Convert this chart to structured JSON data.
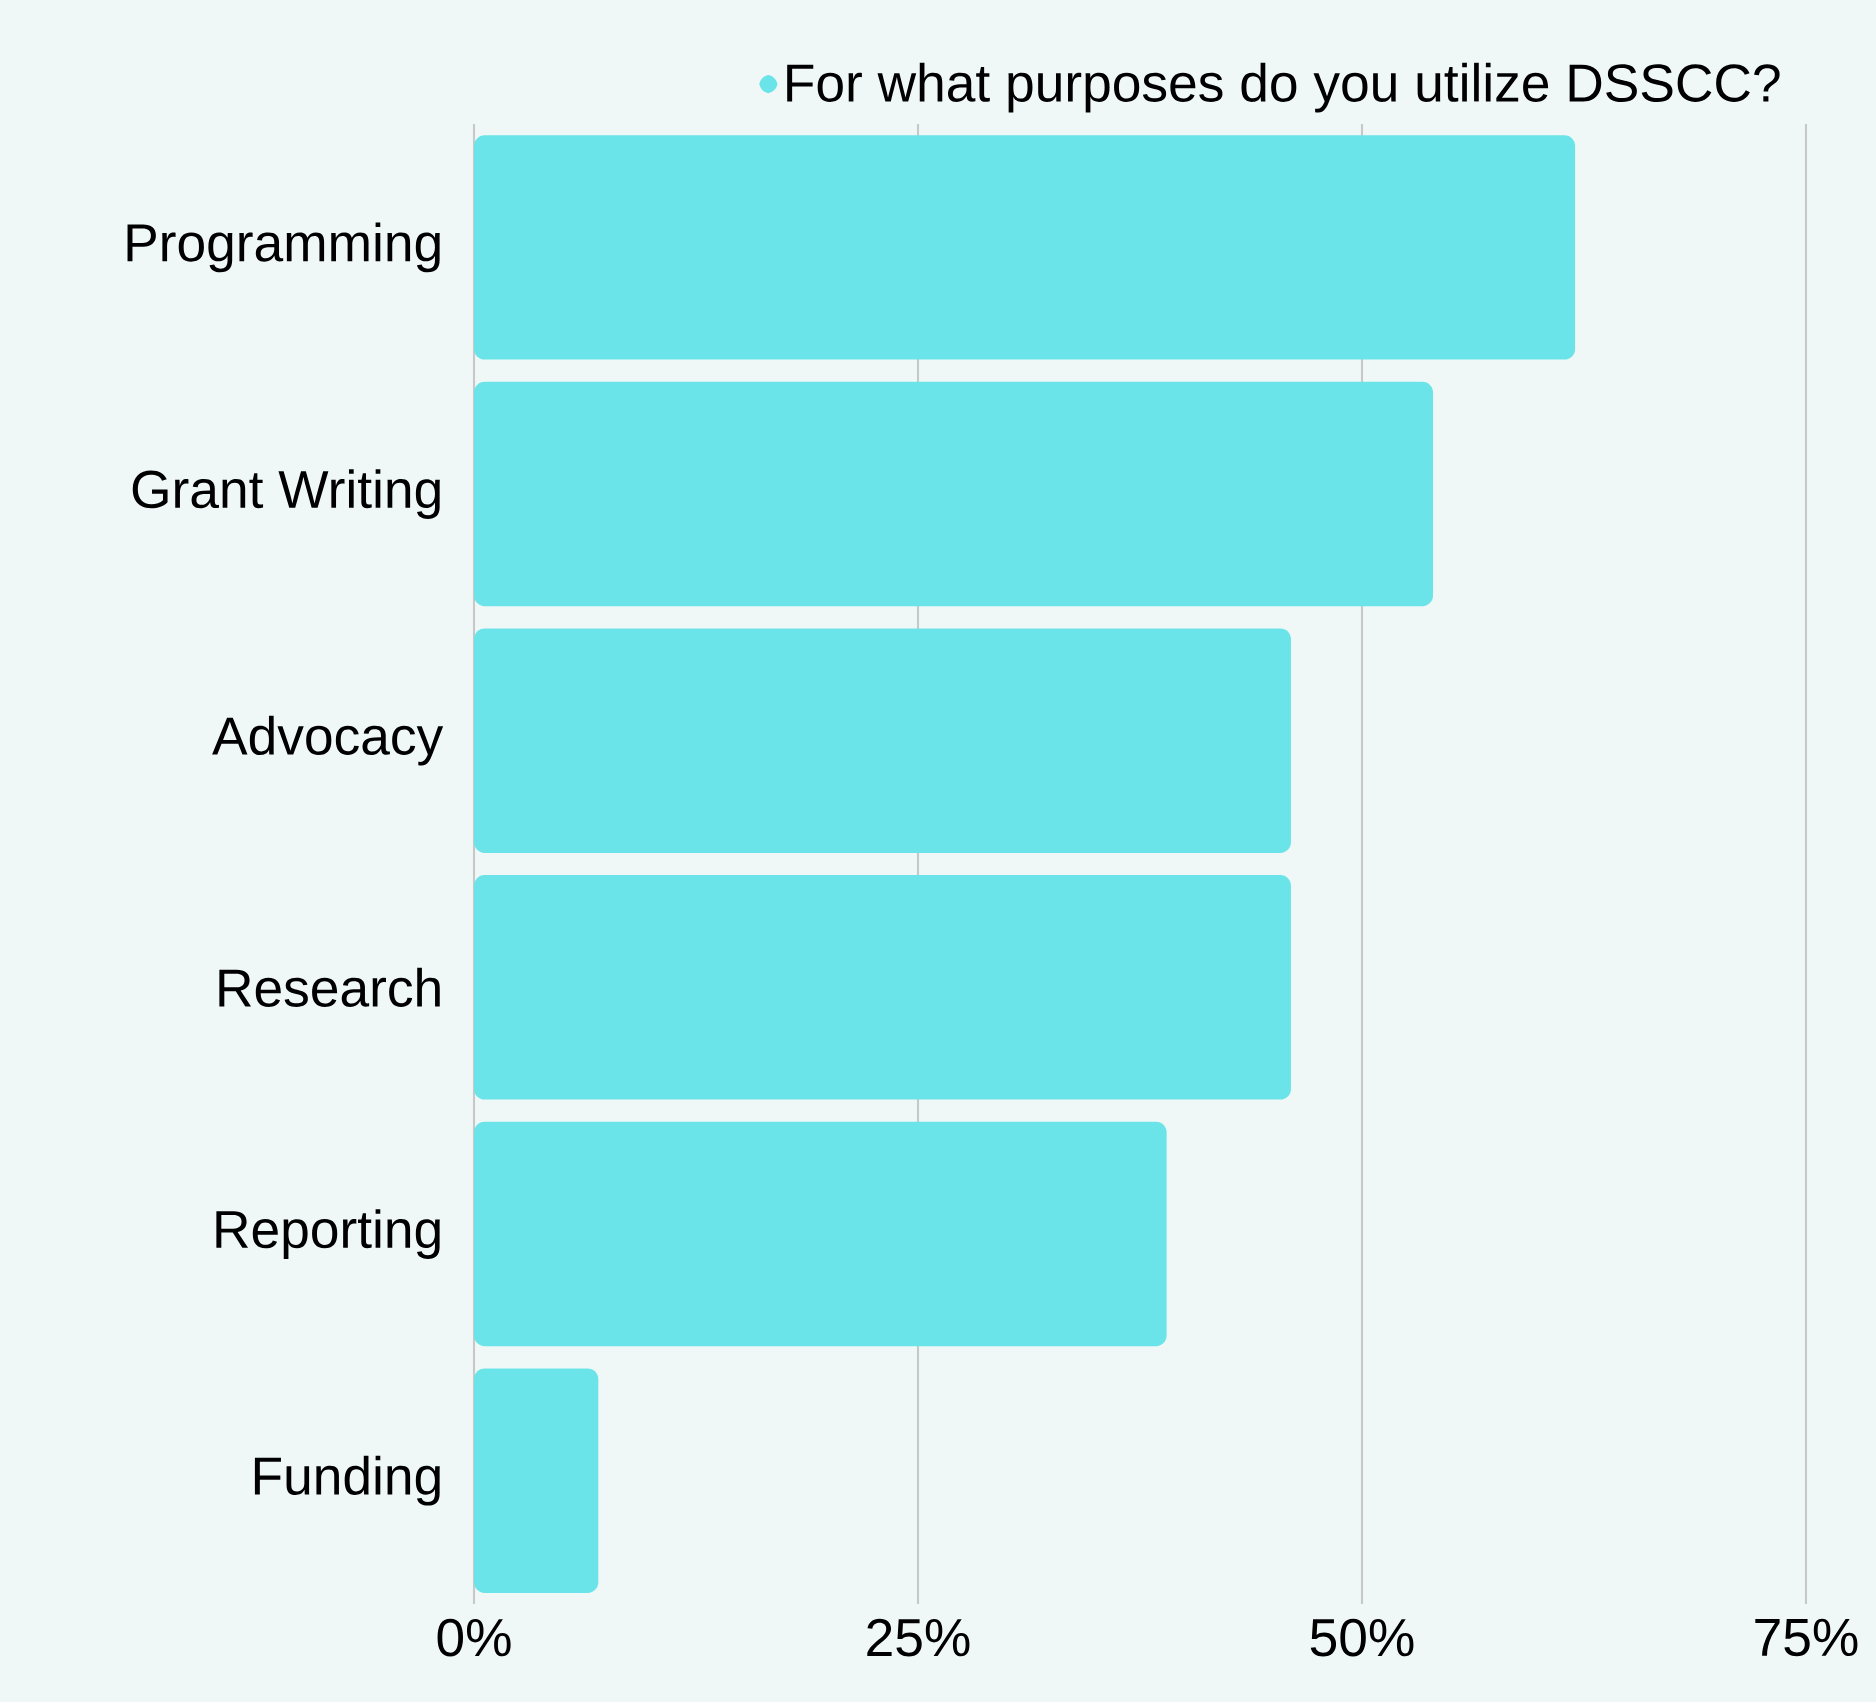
{
  "chart_data": {
    "type": "bar",
    "orientation": "horizontal",
    "categories": [
      "Programming",
      "Grant Writing",
      "Advocacy",
      "Research",
      "Reporting",
      "Funding"
    ],
    "series": [
      {
        "name": "For what purposes do you utilize DSSCC?",
        "color": "#6ae4e9",
        "values": [
          62,
          54,
          46,
          46,
          39,
          7
        ]
      }
    ],
    "xlim": [
      0,
      75
    ],
    "xticks": [
      {
        "value": 0,
        "label": "0%"
      },
      {
        "value": 25,
        "label": "25%"
      },
      {
        "value": 50,
        "label": "50%"
      },
      {
        "value": 75,
        "label": "75%"
      }
    ],
    "grid": "x",
    "legend": "top"
  }
}
